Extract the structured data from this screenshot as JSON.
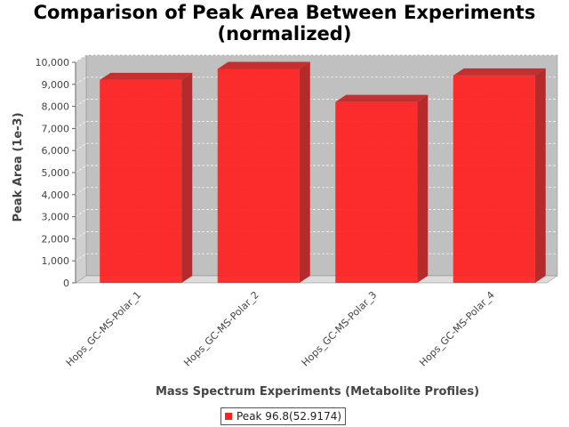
{
  "chart_data": {
    "type": "bar",
    "title": "Comparison of Peak Area Between Experiments (normalized)",
    "title_lines": [
      "Comparison of Peak Area Between Experiments",
      "(normalized)"
    ],
    "xlabel": "Mass Spectrum Experiments (Metabolite Profiles)",
    "ylabel": "Peak Area (1e-3)",
    "categories": [
      "Hops_GC-MS-Polar_1",
      "Hops_GC-MS-Polar_2",
      "Hops_GC-MS-Polar_3",
      "Hops_GC-MS-Polar_4"
    ],
    "series": [
      {
        "name": "Peak 96.8(52.9174)",
        "values": [
          9200,
          9700,
          8200,
          9400
        ],
        "color": "#ff2020"
      }
    ],
    "ylim": [
      0,
      10000
    ],
    "yticks": [
      0,
      1000,
      2000,
      3000,
      4000,
      5000,
      6000,
      7000,
      8000,
      9000,
      10000
    ],
    "ytick_labels": [
      "0",
      "1,000",
      "2,000",
      "3,000",
      "4,000",
      "5,000",
      "6,000",
      "7,000",
      "8,000",
      "9,000",
      "10,000"
    ],
    "grid": true,
    "legend_position": "bottom",
    "style": "3d",
    "plot_background": "#c0c0c0"
  }
}
